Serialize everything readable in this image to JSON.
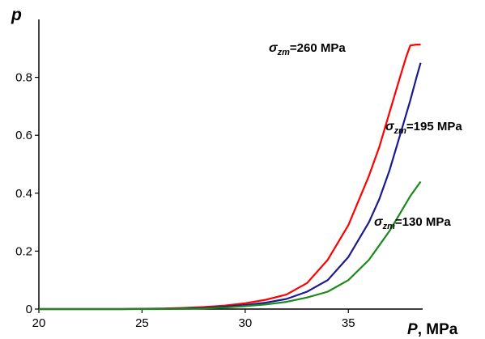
{
  "chart_data": {
    "type": "line",
    "title": "",
    "ylabel": "p",
    "xlabel": {
      "symbol": "P",
      "unit": ", MPa"
    },
    "xlim": [
      20,
      38.6
    ],
    "ylim": [
      0,
      1.0
    ],
    "xticks": [
      "20",
      "25",
      "30",
      "35"
    ],
    "yticks": [
      "0",
      "0.2",
      "0.4",
      "0.6",
      "0.8"
    ],
    "grid": false,
    "series": [
      {
        "color": "#ff0000",
        "label": {
          "symbol": "σ",
          "sub": "zm",
          "text": "=260 MPa"
        },
        "points": [
          [
            20,
            0
          ],
          [
            22,
            0
          ],
          [
            24,
            0
          ],
          [
            26,
            0.002
          ],
          [
            27,
            0.004
          ],
          [
            28,
            0.007
          ],
          [
            29,
            0.012
          ],
          [
            30,
            0.02
          ],
          [
            31,
            0.032
          ],
          [
            32,
            0.05
          ],
          [
            33,
            0.09
          ],
          [
            34,
            0.17
          ],
          [
            35,
            0.29
          ],
          [
            36,
            0.46
          ],
          [
            36.5,
            0.56
          ],
          [
            37,
            0.68
          ],
          [
            37.5,
            0.8
          ],
          [
            37.8,
            0.87
          ],
          [
            38,
            0.91
          ],
          [
            38.3,
            0.913
          ],
          [
            38.5,
            0.913
          ]
        ]
      },
      {
        "color": "#1a1a8c",
        "label": {
          "symbol": "σ",
          "sub": "zm",
          "text": "=195 MPa"
        },
        "points": [
          [
            20,
            0
          ],
          [
            22,
            0
          ],
          [
            24,
            0
          ],
          [
            26,
            0.001
          ],
          [
            27,
            0.002
          ],
          [
            28,
            0.004
          ],
          [
            29,
            0.008
          ],
          [
            30,
            0.014
          ],
          [
            31,
            0.022
          ],
          [
            32,
            0.035
          ],
          [
            33,
            0.06
          ],
          [
            34,
            0.1
          ],
          [
            35,
            0.18
          ],
          [
            36,
            0.3
          ],
          [
            36.5,
            0.38
          ],
          [
            37,
            0.48
          ],
          [
            37.5,
            0.6
          ],
          [
            38,
            0.72
          ],
          [
            38.3,
            0.8
          ],
          [
            38.5,
            0.85
          ]
        ]
      },
      {
        "color": "#1b8a1b",
        "label": {
          "symbol": "σ",
          "sub": "zm",
          "text": "=130 MPa"
        },
        "points": [
          [
            20,
            0
          ],
          [
            22,
            0
          ],
          [
            24,
            0
          ],
          [
            26,
            0
          ],
          [
            27,
            0.001
          ],
          [
            28,
            0.002
          ],
          [
            29,
            0.005
          ],
          [
            30,
            0.01
          ],
          [
            31,
            0.016
          ],
          [
            32,
            0.025
          ],
          [
            33,
            0.04
          ],
          [
            34,
            0.06
          ],
          [
            35,
            0.1
          ],
          [
            36,
            0.17
          ],
          [
            36.5,
            0.22
          ],
          [
            37,
            0.27
          ],
          [
            37.5,
            0.33
          ],
          [
            38,
            0.39
          ],
          [
            38.3,
            0.42
          ],
          [
            38.5,
            0.44
          ]
        ]
      }
    ]
  }
}
